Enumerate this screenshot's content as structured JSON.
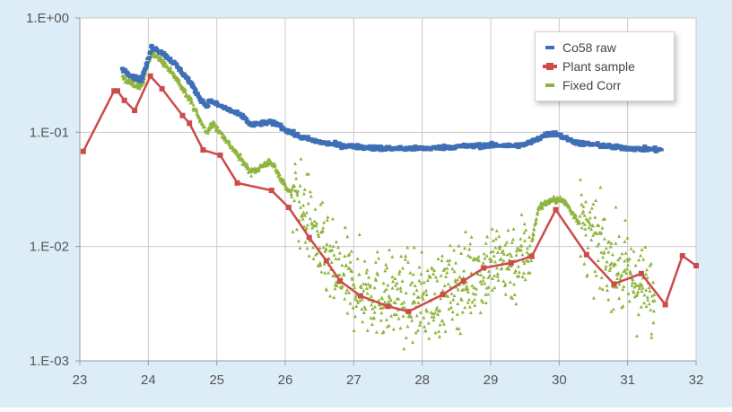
{
  "chart_data": {
    "type": "scatter",
    "title": "",
    "xlabel": "",
    "ylabel": "",
    "xlim": [
      23,
      32
    ],
    "ylim": [
      0.001,
      1
    ],
    "yscale": "log",
    "grid": true,
    "legend_position": "top-right",
    "x_ticks": [
      "23",
      "24",
      "25",
      "26",
      "27",
      "28",
      "29",
      "30",
      "31",
      "32"
    ],
    "y_ticks": [
      "1.E+00",
      "1.E-01",
      "1.E-02",
      "1.E-03"
    ],
    "series": [
      {
        "name": "Co58 raw",
        "color": "#3f6fb5",
        "marker": "dash",
        "x": [
          23.62,
          23.7,
          23.8,
          23.9,
          24.0,
          24.05,
          24.2,
          24.4,
          24.6,
          24.75,
          24.85,
          24.9,
          25.0,
          25.2,
          25.4,
          25.5,
          25.6,
          25.75,
          25.9,
          26.0,
          26.2,
          26.4,
          26.6,
          26.8,
          27.0,
          27.3,
          27.6,
          27.9,
          28.2,
          28.5,
          28.8,
          29.1,
          29.3,
          29.5,
          29.65,
          29.8,
          29.95,
          30.1,
          30.3,
          30.5,
          30.8,
          31.1,
          31.5
        ],
        "y": [
          0.36,
          0.33,
          0.3,
          0.29,
          0.43,
          0.56,
          0.5,
          0.39,
          0.28,
          0.2,
          0.17,
          0.19,
          0.175,
          0.155,
          0.135,
          0.115,
          0.118,
          0.122,
          0.118,
          0.105,
          0.092,
          0.085,
          0.08,
          0.077,
          0.075,
          0.073,
          0.072,
          0.072,
          0.073,
          0.075,
          0.076,
          0.077,
          0.076,
          0.078,
          0.085,
          0.095,
          0.098,
          0.088,
          0.08,
          0.078,
          0.074,
          0.072,
          0.07
        ]
      },
      {
        "name": "Plant sample",
        "color": "#cc4b4b",
        "marker": "square",
        "x": [
          23.05,
          23.5,
          23.55,
          23.65,
          23.8,
          24.03,
          24.2,
          24.5,
          24.6,
          24.8,
          25.05,
          25.3,
          25.8,
          26.05,
          26.35,
          26.6,
          26.8,
          27.1,
          27.5,
          27.8,
          28.3,
          28.6,
          28.9,
          29.3,
          29.6,
          29.95,
          30.4,
          30.8,
          31.2,
          31.55,
          31.8,
          32.0
        ],
        "y": [
          0.068,
          0.23,
          0.23,
          0.19,
          0.155,
          0.31,
          0.24,
          0.14,
          0.12,
          0.07,
          0.063,
          0.036,
          0.031,
          0.022,
          0.012,
          0.0075,
          0.005,
          0.0037,
          0.003,
          0.0027,
          0.0038,
          0.005,
          0.0065,
          0.0072,
          0.0082,
          0.021,
          0.0085,
          0.0047,
          0.0058,
          0.0031,
          0.0083,
          0.0068
        ]
      },
      {
        "name": "Fixed Corr",
        "color": "#8fb43c",
        "marker": "triangle",
        "x": [
          23.62,
          23.75,
          23.9,
          24.05,
          24.2,
          24.4,
          24.6,
          24.75,
          24.85,
          24.95,
          25.05,
          25.25,
          25.5,
          25.6,
          25.75,
          25.85,
          25.95,
          26.1,
          26.3,
          26.5,
          26.7,
          27.0,
          27.3,
          27.6,
          27.9,
          28.2,
          28.5,
          28.8,
          29.0,
          29.2,
          29.4,
          29.6,
          29.7,
          29.85,
          30.0,
          30.1,
          30.3,
          30.5,
          30.8,
          31.0,
          31.2,
          31.4
        ],
        "y": [
          0.3,
          0.27,
          0.25,
          0.5,
          0.42,
          0.3,
          0.2,
          0.13,
          0.1,
          0.12,
          0.1,
          0.07,
          0.045,
          0.048,
          0.055,
          0.05,
          0.038,
          0.028,
          0.02,
          0.01,
          0.006,
          0.0045,
          0.004,
          0.0035,
          0.0034,
          0.0036,
          0.0045,
          0.006,
          0.0068,
          0.0075,
          0.0075,
          0.011,
          0.022,
          0.025,
          0.026,
          0.024,
          0.016,
          0.011,
          0.007,
          0.0055,
          0.0045,
          0.0032
        ]
      }
    ]
  }
}
